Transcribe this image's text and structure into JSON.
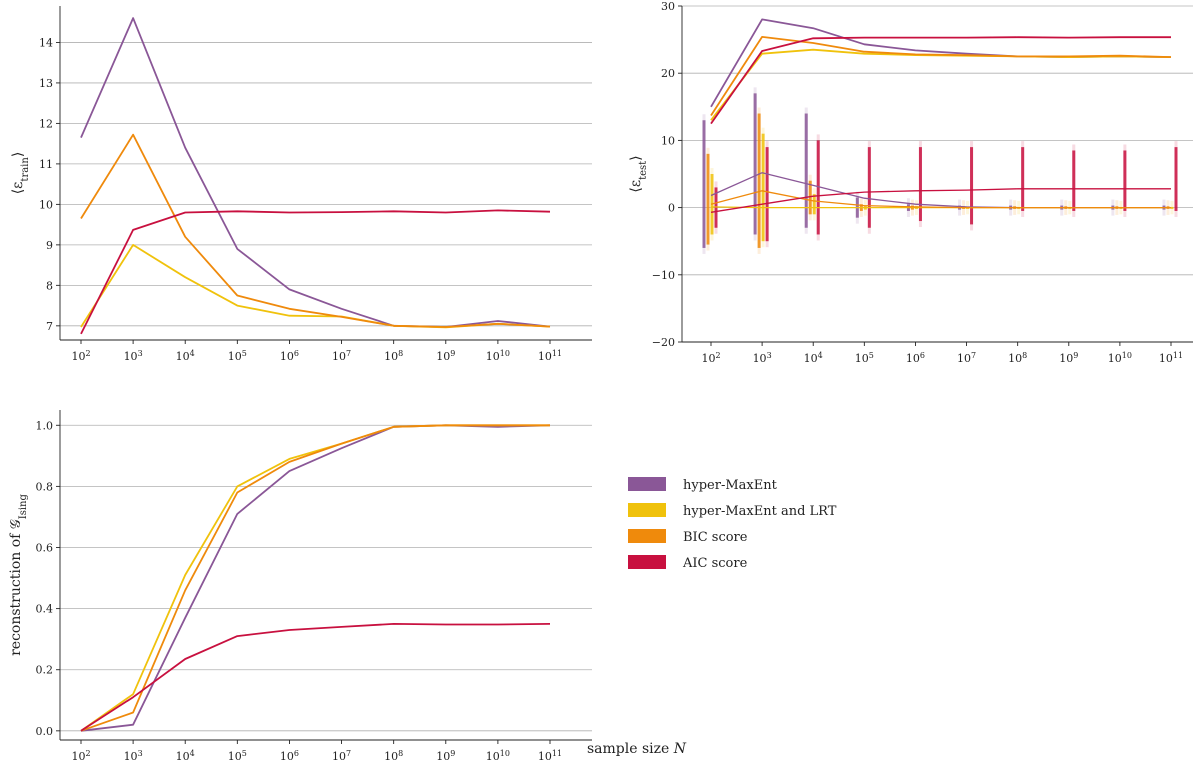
{
  "colors": {
    "hyper": "#8a5797",
    "lrt": "#f0c20c",
    "bic": "#ef8a0c",
    "aic": "#c8103f",
    "grid": "#b0b0b0"
  },
  "x_tick_labels": [
    "10^2",
    "10^3",
    "10^4",
    "10^5",
    "10^6",
    "10^7",
    "10^8",
    "10^9",
    "10^10",
    "10^11"
  ],
  "xlabel": "sample size N",
  "legend": {
    "placement": "right of bottom panel",
    "items": [
      {
        "key": "hyper",
        "label": "hyper-MaxEnt"
      },
      {
        "key": "lrt",
        "label": "hyper-MaxEnt and LRT"
      },
      {
        "key": "bic",
        "label": "BIC score"
      },
      {
        "key": "aic",
        "label": "AIC score"
      }
    ]
  },
  "chart_data": [
    {
      "id": "train",
      "type": "line",
      "ylabel": "⟨ε_train⟩",
      "x": [
        2,
        3,
        4,
        5,
        6,
        7,
        8,
        9,
        10,
        11
      ],
      "ylim": [
        6.65,
        14.9
      ],
      "yticks": [
        7,
        8,
        9,
        10,
        11,
        12,
        13,
        14
      ],
      "grid": true,
      "series": [
        {
          "key": "hyper",
          "name": "hyper-MaxEnt",
          "values": [
            11.65,
            14.6,
            11.4,
            8.9,
            7.9,
            7.42,
            7.0,
            6.97,
            7.12,
            6.98
          ]
        },
        {
          "key": "lrt",
          "name": "hyper-MaxEnt and LRT",
          "values": [
            6.97,
            9.0,
            8.2,
            7.5,
            7.25,
            7.23,
            7.0,
            6.96,
            7.05,
            6.98
          ]
        },
        {
          "key": "bic",
          "name": "BIC score",
          "values": [
            9.65,
            11.72,
            9.2,
            7.75,
            7.42,
            7.22,
            7.0,
            6.97,
            7.05,
            6.98
          ]
        },
        {
          "key": "aic",
          "name": "AIC score",
          "values": [
            6.8,
            9.37,
            9.8,
            9.83,
            9.8,
            9.81,
            9.83,
            9.8,
            9.85,
            9.82
          ]
        }
      ]
    },
    {
      "id": "test",
      "type": "line",
      "ylabel": "⟨ε_test⟩",
      "x": [
        2,
        3,
        4,
        5,
        6,
        7,
        8,
        9,
        10,
        11
      ],
      "ylim": [
        -20,
        30
      ],
      "yticks": [
        -20,
        -10,
        0,
        10,
        20,
        30
      ],
      "grid": true,
      "series": [
        {
          "key": "hyper",
          "name": "hyper-MaxEnt",
          "values": [
            15.0,
            28.0,
            26.7,
            24.3,
            23.4,
            22.9,
            22.5,
            22.4,
            22.5,
            22.4
          ]
        },
        {
          "key": "lrt",
          "name": "hyper-MaxEnt and LRT",
          "values": [
            13.0,
            22.9,
            23.5,
            22.9,
            22.7,
            22.6,
            22.5,
            22.4,
            22.5,
            22.4
          ]
        },
        {
          "key": "bic",
          "name": "BIC score",
          "values": [
            13.7,
            25.4,
            24.5,
            23.2,
            22.8,
            22.7,
            22.5,
            22.5,
            22.6,
            22.4
          ]
        },
        {
          "key": "aic",
          "name": "AIC score",
          "values": [
            12.5,
            23.3,
            25.2,
            25.3,
            25.3,
            25.3,
            25.35,
            25.3,
            25.35,
            25.35
          ]
        }
      ],
      "series_low": [
        {
          "key": "hyper",
          "values": [
            1.8,
            5.2,
            3.3,
            1.4,
            0.5,
            0.1,
            0.0,
            0.0,
            0.0,
            0.0
          ]
        },
        {
          "key": "lrt",
          "values": [
            0.1,
            0.0,
            0.0,
            0.0,
            0.0,
            0.0,
            0.0,
            0.0,
            0.0,
            0.0
          ]
        },
        {
          "key": "bic",
          "values": [
            0.5,
            2.5,
            1.0,
            0.3,
            0.1,
            0.0,
            0.0,
            0.0,
            0.0,
            0.0
          ]
        },
        {
          "key": "aic",
          "values": [
            -0.7,
            0.5,
            1.7,
            2.3,
            2.5,
            2.6,
            2.8,
            2.8,
            2.8,
            2.8
          ]
        }
      ],
      "distributions": [
        {
          "x": 2,
          "bands": [
            {
              "key": "hyper",
              "lo": -6,
              "hi": 13
            },
            {
              "key": "bic",
              "lo": -5.5,
              "hi": 8
            },
            {
              "key": "lrt",
              "lo": -4,
              "hi": 5
            },
            {
              "key": "aic",
              "lo": -3,
              "hi": 3
            }
          ]
        },
        {
          "x": 3,
          "bands": [
            {
              "key": "hyper",
              "lo": -4,
              "hi": 17
            },
            {
              "key": "bic",
              "lo": -6,
              "hi": 14
            },
            {
              "key": "lrt",
              "lo": -5,
              "hi": 11
            },
            {
              "key": "aic",
              "lo": -5,
              "hi": 9
            }
          ]
        },
        {
          "x": 4,
          "bands": [
            {
              "key": "hyper",
              "lo": -3,
              "hi": 14
            },
            {
              "key": "bic",
              "lo": -1,
              "hi": 4
            },
            {
              "key": "lrt",
              "lo": -1,
              "hi": 2
            },
            {
              "key": "aic",
              "lo": -4,
              "hi": 10
            }
          ]
        },
        {
          "x": 5,
          "bands": [
            {
              "key": "hyper",
              "lo": -1.5,
              "hi": 1.5
            },
            {
              "key": "bic",
              "lo": -0.5,
              "hi": 0.5
            },
            {
              "key": "lrt",
              "lo": -0.3,
              "hi": 0.3
            },
            {
              "key": "aic",
              "lo": -3,
              "hi": 9
            }
          ]
        },
        {
          "x": 6,
          "bands": [
            {
              "key": "hyper",
              "lo": -0.5,
              "hi": 0.5
            },
            {
              "key": "bic",
              "lo": -0.3,
              "hi": 0.3
            },
            {
              "key": "lrt",
              "lo": -0.2,
              "hi": 0.2
            },
            {
              "key": "aic",
              "lo": -2,
              "hi": 9
            }
          ]
        },
        {
          "x": 7,
          "bands": [
            {
              "key": "hyper",
              "lo": -0.3,
              "hi": 0.3
            },
            {
              "key": "bic",
              "lo": -0.2,
              "hi": 0.2
            },
            {
              "key": "lrt",
              "lo": -0.1,
              "hi": 0.1
            },
            {
              "key": "aic",
              "lo": -2.5,
              "hi": 9
            }
          ]
        },
        {
          "x": 8,
          "bands": [
            {
              "key": "hyper",
              "lo": -0.3,
              "hi": 0.3
            },
            {
              "key": "bic",
              "lo": -0.2,
              "hi": 0.2
            },
            {
              "key": "lrt",
              "lo": -0.1,
              "hi": 0.1
            },
            {
              "key": "aic",
              "lo": -0.5,
              "hi": 9
            }
          ]
        },
        {
          "x": 9,
          "bands": [
            {
              "key": "hyper",
              "lo": -0.3,
              "hi": 0.3
            },
            {
              "key": "bic",
              "lo": -0.2,
              "hi": 0.2
            },
            {
              "key": "lrt",
              "lo": -0.1,
              "hi": 0.1
            },
            {
              "key": "aic",
              "lo": -0.5,
              "hi": 8.5
            }
          ]
        },
        {
          "x": 10,
          "bands": [
            {
              "key": "hyper",
              "lo": -0.3,
              "hi": 0.3
            },
            {
              "key": "bic",
              "lo": -0.2,
              "hi": 0.2
            },
            {
              "key": "lrt",
              "lo": -0.1,
              "hi": 0.1
            },
            {
              "key": "aic",
              "lo": -0.5,
              "hi": 8.5
            }
          ]
        },
        {
          "x": 11,
          "bands": [
            {
              "key": "hyper",
              "lo": -0.3,
              "hi": 0.3
            },
            {
              "key": "bic",
              "lo": -0.2,
              "hi": 0.2
            },
            {
              "key": "lrt",
              "lo": -0.1,
              "hi": 0.1
            },
            {
              "key": "aic",
              "lo": -0.5,
              "hi": 9
            }
          ]
        }
      ]
    },
    {
      "id": "recon",
      "type": "line",
      "ylabel": "reconstruction of 𝒢_Ising",
      "x": [
        2,
        3,
        4,
        5,
        6,
        7,
        8,
        9,
        10,
        11
      ],
      "ylim": [
        -0.03,
        1.05
      ],
      "yticks": [
        0.0,
        0.2,
        0.4,
        0.6,
        0.8,
        1.0
      ],
      "grid": true,
      "series": [
        {
          "key": "hyper",
          "name": "hyper-MaxEnt",
          "values": [
            0.0,
            0.02,
            0.37,
            0.71,
            0.85,
            0.925,
            0.995,
            1.0,
            0.995,
            1.0
          ]
        },
        {
          "key": "lrt",
          "name": "hyper-MaxEnt and LRT",
          "values": [
            0.0,
            0.12,
            0.51,
            0.8,
            0.89,
            0.94,
            0.995,
            1.0,
            1.0,
            1.0
          ]
        },
        {
          "key": "bic",
          "name": "BIC score",
          "values": [
            0.0,
            0.06,
            0.46,
            0.78,
            0.88,
            0.94,
            0.995,
            1.0,
            1.0,
            1.0
          ]
        },
        {
          "key": "aic",
          "name": "AIC score",
          "values": [
            0.0,
            0.11,
            0.235,
            0.31,
            0.33,
            0.34,
            0.35,
            0.348,
            0.348,
            0.35
          ]
        }
      ]
    }
  ]
}
